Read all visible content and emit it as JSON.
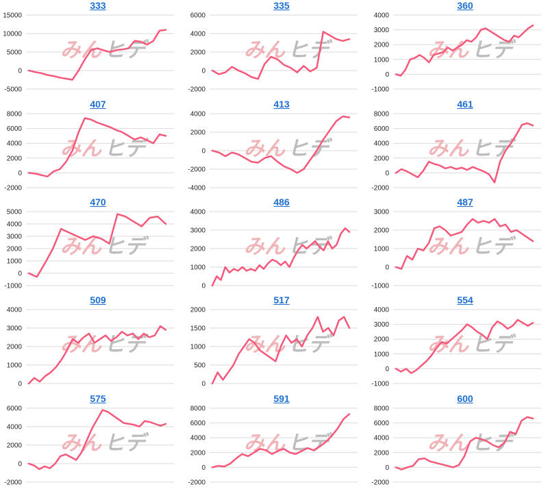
{
  "colors": {
    "line": "#f5587b",
    "title": "#1f6fd1",
    "grid": "#d9d9d9",
    "axis": "#222222",
    "wm_left": "#f0b4b8",
    "wm_right": "#bdbdbd"
  },
  "watermark": {
    "left": "みん",
    "right": "ヒデ"
  },
  "chart_data": [
    {
      "type": "line",
      "title": "333",
      "ylim": [
        -5000,
        15000
      ],
      "yticks": [
        -5000,
        0,
        5000,
        10000,
        15000
      ],
      "values": [
        0,
        -400,
        -700,
        -1200,
        -1500,
        -1900,
        -2200,
        -2500,
        0,
        3000,
        5500,
        6000,
        5500,
        5000,
        5500,
        5700,
        6000,
        8000,
        7800,
        7000,
        8000,
        10800,
        11000
      ]
    },
    {
      "type": "line",
      "title": "335",
      "ylim": [
        -2000,
        6000
      ],
      "yticks": [
        -2000,
        0,
        2000,
        4000,
        6000
      ],
      "values": [
        0,
        -400,
        -200,
        400,
        0,
        -300,
        -700,
        -900,
        700,
        1500,
        1200,
        600,
        300,
        -200,
        500,
        -100,
        300,
        4200,
        3800,
        3400,
        3200,
        3400
      ]
    },
    {
      "type": "line",
      "title": "360",
      "ylim": [
        -1000,
        4000
      ],
      "yticks": [
        -1000,
        0,
        1000,
        2000,
        3000,
        4000
      ],
      "values": [
        0,
        -100,
        300,
        1000,
        1100,
        1300,
        1100,
        800,
        1300,
        1400,
        1500,
        1800,
        1600,
        1800,
        2000,
        2300,
        2200,
        2500,
        3000,
        3100,
        2900,
        2700,
        2500,
        2300,
        2200,
        2600,
        2500,
        2800,
        3100,
        3300
      ]
    },
    {
      "type": "line",
      "title": "407",
      "ylim": [
        -2000,
        8000
      ],
      "yticks": [
        -2000,
        0,
        2000,
        4000,
        6000,
        8000
      ],
      "values": [
        0,
        -100,
        -300,
        -500,
        200,
        500,
        1500,
        3000,
        5500,
        7400,
        7200,
        6800,
        6500,
        6200,
        5800,
        5500,
        5000,
        4500,
        4800,
        4400,
        4000,
        5200,
        5000
      ]
    },
    {
      "type": "line",
      "title": "413",
      "ylim": [
        -4000,
        4000
      ],
      "yticks": [
        -4000,
        -2000,
        0,
        2000,
        4000
      ],
      "values": [
        0,
        -200,
        -600,
        -200,
        -400,
        -800,
        -1200,
        -1300,
        -800,
        -600,
        -1200,
        -1700,
        -2000,
        -2400,
        -2000,
        -1000,
        0,
        1200,
        2200,
        3200,
        3700,
        3600
      ]
    },
    {
      "type": "line",
      "title": "461",
      "ylim": [
        -2000,
        8000
      ],
      "yticks": [
        -2000,
        0,
        2000,
        4000,
        6000,
        8000
      ],
      "values": [
        0,
        500,
        200,
        -200,
        -600,
        300,
        1500,
        1200,
        1000,
        600,
        800,
        500,
        700,
        400,
        800,
        500,
        200,
        -200,
        -1300,
        1500,
        3000,
        4000,
        5200,
        6500,
        6700,
        6400
      ]
    },
    {
      "type": "line",
      "title": "470",
      "ylim": [
        -1000,
        5000
      ],
      "yticks": [
        -1000,
        0,
        1000,
        2000,
        3000,
        4000,
        5000
      ],
      "values": [
        0,
        -300,
        800,
        2000,
        3600,
        3300,
        3000,
        2700,
        3000,
        2800,
        2400,
        4800,
        4600,
        4200,
        3800,
        4500,
        4600,
        4000
      ]
    },
    {
      "type": "line",
      "title": "486",
      "ylim": [
        0,
        4000
      ],
      "yticks": [
        0,
        1000,
        2000,
        3000,
        4000
      ],
      "values": [
        0,
        500,
        300,
        1000,
        700,
        900,
        800,
        1000,
        800,
        900,
        800,
        1100,
        900,
        1200,
        1400,
        1300,
        1100,
        1300,
        1000,
        1500,
        1900,
        2200,
        2000,
        2200,
        2400,
        2100,
        1900,
        2400,
        2000,
        2200,
        2800,
        3100,
        2900
      ]
    },
    {
      "type": "line",
      "title": "487",
      "ylim": [
        -1000,
        3000
      ],
      "yticks": [
        -1000,
        0,
        1000,
        2000,
        3000
      ],
      "values": [
        0,
        -100,
        600,
        400,
        1000,
        900,
        1300,
        2100,
        2200,
        2000,
        1700,
        1800,
        1900,
        2300,
        2600,
        2400,
        2500,
        2400,
        2600,
        2200,
        2300,
        1900,
        2000,
        1800,
        1600,
        1400
      ]
    },
    {
      "type": "line",
      "title": "509",
      "ylim": [
        0,
        4000
      ],
      "yticks": [
        0,
        1000,
        2000,
        3000,
        4000
      ],
      "values": [
        0,
        300,
        100,
        400,
        600,
        900,
        1300,
        1800,
        2400,
        2200,
        2500,
        2700,
        2200,
        2400,
        2600,
        2300,
        2500,
        2800,
        2600,
        2700,
        2400,
        2700,
        2500,
        2600,
        3100,
        2900
      ]
    },
    {
      "type": "line",
      "title": "517",
      "ylim": [
        0,
        2000
      ],
      "yticks": [
        0,
        500,
        1000,
        1500,
        2000
      ],
      "values": [
        0,
        300,
        100,
        300,
        500,
        800,
        1000,
        1200,
        1100,
        900,
        800,
        700,
        600,
        1000,
        1300,
        1100,
        1200,
        1000,
        1300,
        1500,
        1800,
        1400,
        1500,
        1300,
        1700,
        1800,
        1500
      ]
    },
    {
      "type": "line",
      "title": "554",
      "ylim": [
        -1000,
        4000
      ],
      "yticks": [
        -1000,
        0,
        1000,
        2000,
        3000,
        4000
      ],
      "values": [
        0,
        -200,
        0,
        -300,
        -100,
        200,
        500,
        900,
        1400,
        1800,
        1700,
        2000,
        2300,
        2600,
        3000,
        2800,
        2500,
        2300,
        2000,
        2800,
        3200,
        3000,
        2700,
        2900,
        3300,
        3100,
        2900,
        3100
      ]
    },
    {
      "type": "line",
      "title": "575",
      "ylim": [
        -2000,
        6000
      ],
      "yticks": [
        -2000,
        0,
        2000,
        4000,
        6000
      ],
      "values": [
        0,
        -200,
        -600,
        -300,
        -500,
        0,
        800,
        1000,
        700,
        400,
        1200,
        2500,
        3800,
        4800,
        5800,
        5600,
        5200,
        4800,
        4400,
        4300,
        4200,
        4000,
        4600,
        4500,
        4300,
        4100,
        4300
      ]
    },
    {
      "type": "line",
      "title": "591",
      "ylim": [
        -2000,
        8000
      ],
      "yticks": [
        -2000,
        0,
        2000,
        4000,
        6000,
        8000
      ],
      "values": [
        0,
        200,
        100,
        500,
        1200,
        1800,
        1500,
        2000,
        2500,
        2300,
        1800,
        2200,
        2500,
        2000,
        1800,
        2200,
        2600,
        2300,
        2800,
        3400,
        4200,
        5200,
        6500,
        7200
      ]
    },
    {
      "type": "line",
      "title": "600",
      "ylim": [
        -2000,
        8000
      ],
      "yticks": [
        -2000,
        0,
        2000,
        4000,
        6000,
        8000
      ],
      "values": [
        0,
        -300,
        0,
        200,
        1100,
        1200,
        800,
        600,
        400,
        200,
        0,
        300,
        1500,
        3500,
        4000,
        3800,
        3500,
        3000,
        2700,
        3300,
        4800,
        4500,
        6300,
        6800,
        6600
      ]
    }
  ]
}
